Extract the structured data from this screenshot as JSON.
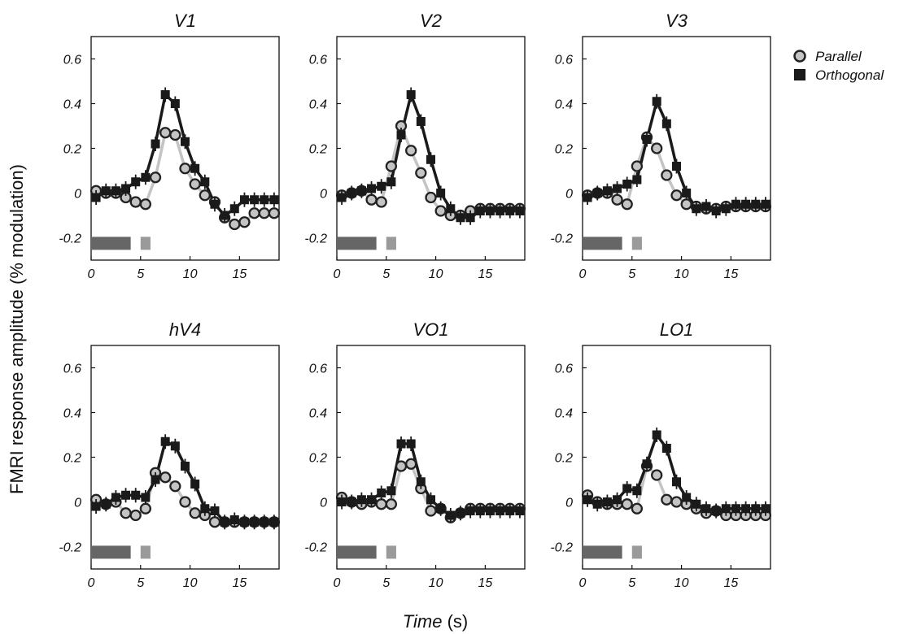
{
  "chart_data": {
    "type": "line",
    "ylabel": "FMRI response amplitude (% modulation)",
    "xlabel_main": "Time",
    "xlabel_unit": "(s)",
    "xlim": [
      0,
      19
    ],
    "ylim": [
      -0.3,
      0.7
    ],
    "xticks": [
      0,
      5,
      10,
      15
    ],
    "yticks": [
      -0.2,
      0,
      0.2,
      0.4,
      0.6
    ],
    "ytick_labels": [
      "-0.2",
      "0",
      "0.2",
      "0.4",
      "0.6"
    ],
    "legend_position": "top-right",
    "legend": [
      {
        "name": "Parallel",
        "marker": "circle",
        "color": "#c4c4c4"
      },
      {
        "name": "Orthogonal",
        "marker": "square",
        "color": "#1a1a1a"
      }
    ],
    "stimulus_bars": [
      {
        "x": [
          0,
          4
        ],
        "y": -0.225,
        "color": "#666666"
      },
      {
        "x": [
          5,
          6
        ],
        "y": -0.225,
        "color": "#9a9a9a"
      }
    ],
    "time": [
      0.5,
      1.5,
      2.5,
      3.5,
      4.5,
      5.5,
      6.5,
      7.5,
      8.5,
      9.5,
      10.5,
      11.5,
      12.5,
      13.5,
      14.5,
      15.5,
      16.5,
      17.5,
      18.5
    ],
    "panels": [
      {
        "title": "V1",
        "parallel": [
          0.01,
          0.0,
          0.0,
          -0.02,
          -0.04,
          -0.05,
          0.07,
          0.27,
          0.26,
          0.11,
          0.04,
          -0.01,
          -0.04,
          -0.11,
          -0.14,
          -0.13,
          -0.09,
          -0.09,
          -0.09
        ],
        "orthogonal": [
          -0.02,
          0.01,
          0.01,
          0.02,
          0.05,
          0.07,
          0.22,
          0.44,
          0.4,
          0.23,
          0.11,
          0.05,
          -0.05,
          -0.1,
          -0.07,
          -0.03,
          -0.03,
          -0.03,
          -0.03
        ]
      },
      {
        "title": "V2",
        "parallel": [
          -0.01,
          0.0,
          0.01,
          -0.03,
          -0.04,
          0.12,
          0.3,
          0.19,
          0.09,
          -0.02,
          -0.08,
          -0.1,
          -0.1,
          -0.08,
          -0.07,
          -0.07,
          -0.07,
          -0.07,
          -0.07
        ],
        "orthogonal": [
          -0.02,
          0.0,
          0.01,
          0.02,
          0.03,
          0.05,
          0.26,
          0.44,
          0.32,
          0.15,
          0.0,
          -0.07,
          -0.11,
          -0.11,
          -0.08,
          -0.08,
          -0.08,
          -0.08,
          -0.08
        ]
      },
      {
        "title": "V3",
        "parallel": [
          -0.01,
          0.0,
          0.0,
          -0.03,
          -0.05,
          0.12,
          0.25,
          0.2,
          0.08,
          -0.01,
          -0.05,
          -0.06,
          -0.07,
          -0.07,
          -0.06,
          -0.06,
          -0.06,
          -0.06,
          -0.06
        ],
        "orthogonal": [
          -0.02,
          0.0,
          0.01,
          0.02,
          0.04,
          0.06,
          0.24,
          0.41,
          0.31,
          0.12,
          0.0,
          -0.07,
          -0.06,
          -0.08,
          -0.07,
          -0.05,
          -0.05,
          -0.05,
          -0.05
        ]
      },
      {
        "title": "hV4",
        "parallel": [
          0.01,
          -0.01,
          0.0,
          -0.05,
          -0.06,
          -0.03,
          0.13,
          0.11,
          0.07,
          0.0,
          -0.05,
          -0.06,
          -0.09,
          -0.09,
          -0.09,
          -0.09,
          -0.09,
          -0.09,
          -0.09
        ],
        "orthogonal": [
          -0.02,
          -0.01,
          0.02,
          0.03,
          0.03,
          0.02,
          0.1,
          0.27,
          0.25,
          0.16,
          0.08,
          -0.03,
          -0.04,
          -0.09,
          -0.08,
          -0.09,
          -0.09,
          -0.09,
          -0.09
        ]
      },
      {
        "title": "VO1",
        "parallel": [
          0.02,
          0.0,
          -0.01,
          0.0,
          -0.01,
          -0.01,
          0.16,
          0.17,
          0.06,
          -0.04,
          -0.03,
          -0.07,
          -0.05,
          -0.03,
          -0.03,
          -0.03,
          -0.03,
          -0.03,
          -0.03
        ],
        "orthogonal": [
          0.0,
          0.0,
          0.01,
          0.01,
          0.04,
          0.05,
          0.26,
          0.26,
          0.09,
          0.01,
          -0.03,
          -0.06,
          -0.05,
          -0.04,
          -0.04,
          -0.04,
          -0.04,
          -0.04,
          -0.04
        ]
      },
      {
        "title": "LO1",
        "parallel": [
          0.03,
          0.0,
          -0.01,
          -0.01,
          -0.01,
          -0.03,
          0.16,
          0.12,
          0.01,
          0.0,
          -0.01,
          -0.03,
          -0.05,
          -0.04,
          -0.06,
          -0.06,
          -0.06,
          -0.06,
          -0.06
        ],
        "orthogonal": [
          0.01,
          -0.01,
          0.0,
          0.01,
          0.06,
          0.05,
          0.17,
          0.3,
          0.24,
          0.09,
          0.02,
          -0.01,
          -0.03,
          -0.04,
          -0.03,
          -0.03,
          -0.03,
          -0.03,
          -0.03
        ]
      }
    ]
  }
}
